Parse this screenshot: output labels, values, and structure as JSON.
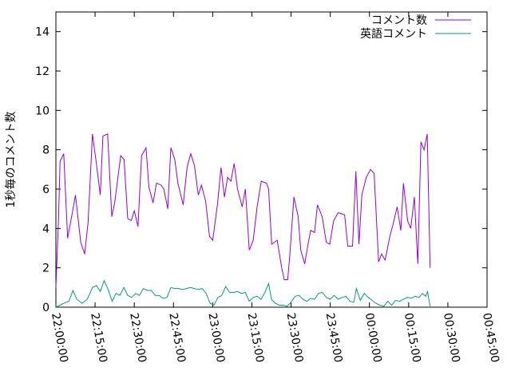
{
  "chart_data": {
    "type": "line",
    "xlabel": "",
    "ylabel": "1秒毎のコメント数",
    "ylim": [
      0,
      15
    ],
    "y_ticks": [
      "0",
      "2",
      "4",
      "6",
      "8",
      "10",
      "12",
      "14"
    ],
    "y_tick_values": [
      0,
      2,
      4,
      6,
      8,
      10,
      12,
      14
    ],
    "x_ticks": [
      "22:00:00",
      "22:15:00",
      "22:30:00",
      "22:45:00",
      "23:00:00",
      "23:15:00",
      "23:30:00",
      "23:45:00",
      "00:00:00",
      "00:15:00",
      "00:30:00",
      "00:45:00"
    ],
    "x_tick_minutes": [
      0,
      15,
      30,
      45,
      60,
      75,
      90,
      105,
      120,
      135,
      150,
      165
    ],
    "xlim_minutes": [
      0,
      165
    ],
    "legend_position": "top-right",
    "grid": false,
    "series": [
      {
        "name": "コメント数",
        "color": "#9400d3",
        "points": [
          [
            0,
            1.0
          ],
          [
            1,
            4.5
          ],
          [
            1.6,
            7.4
          ],
          [
            3,
            7.8
          ],
          [
            4.5,
            3.5
          ],
          [
            6.3,
            4.8
          ],
          [
            7.5,
            5.7
          ],
          [
            9.5,
            3.3
          ],
          [
            11,
            2.7
          ],
          [
            12.3,
            4.3
          ],
          [
            14,
            8.8
          ],
          [
            15.5,
            7.3
          ],
          [
            17,
            5.7
          ],
          [
            18,
            8.7
          ],
          [
            19.8,
            8.8
          ],
          [
            21.4,
            4.6
          ],
          [
            22.5,
            5.3
          ],
          [
            24.8,
            7.7
          ],
          [
            26.1,
            7.5
          ],
          [
            27.5,
            4.5
          ],
          [
            28.8,
            4.4
          ],
          [
            30,
            4.9
          ],
          [
            31.4,
            4.1
          ],
          [
            32.8,
            7.7
          ],
          [
            34.5,
            8.1
          ],
          [
            35.6,
            6.1
          ],
          [
            37.2,
            5.3
          ],
          [
            38.5,
            6.3
          ],
          [
            40.3,
            6.2
          ],
          [
            41.3,
            6.0
          ],
          [
            42.8,
            5.0
          ],
          [
            44,
            8.1
          ],
          [
            45.5,
            7.5
          ],
          [
            46.7,
            6.3
          ],
          [
            48.7,
            5.2
          ],
          [
            50.2,
            7.1
          ],
          [
            51.6,
            7.8
          ],
          [
            53,
            7.2
          ],
          [
            54.5,
            5.7
          ],
          [
            55.7,
            6.2
          ],
          [
            57.3,
            5.4
          ],
          [
            58.8,
            3.6
          ],
          [
            60,
            3.4
          ],
          [
            61.8,
            5.2
          ],
          [
            63.2,
            7.1
          ],
          [
            64.5,
            5.6
          ],
          [
            65.7,
            6.6
          ],
          [
            67,
            6.4
          ],
          [
            68.2,
            7.3
          ],
          [
            69.5,
            6.0
          ],
          [
            71.3,
            5.1
          ],
          [
            72.5,
            6.0
          ],
          [
            74,
            2.9
          ],
          [
            75.5,
            3.4
          ],
          [
            77,
            5.1
          ],
          [
            78.6,
            6.4
          ],
          [
            80.6,
            6.3
          ],
          [
            81.4,
            6.0
          ],
          [
            82.6,
            3.2
          ],
          [
            84.7,
            3.4
          ],
          [
            86.4,
            2.0
          ],
          [
            87.4,
            1.4
          ],
          [
            88.7,
            1.4
          ],
          [
            89.5,
            2.6
          ],
          [
            91.1,
            5.6
          ],
          [
            92.7,
            4.6
          ],
          [
            93.7,
            2.9
          ],
          [
            95.2,
            2.2
          ],
          [
            96.5,
            3.2
          ],
          [
            97.5,
            3.9
          ],
          [
            99,
            3.8
          ],
          [
            100.1,
            5.2
          ],
          [
            101.9,
            4.6
          ],
          [
            103.5,
            3.3
          ],
          [
            104.8,
            3.2
          ],
          [
            106.3,
            4.4
          ],
          [
            108,
            4.8
          ],
          [
            110.5,
            4.7
          ],
          [
            111.7,
            3.1
          ],
          [
            113.5,
            3.1
          ],
          [
            114.8,
            6.9
          ],
          [
            116,
            3.2
          ],
          [
            117.1,
            5.7
          ],
          [
            118.8,
            6.6
          ],
          [
            120.4,
            7.0
          ],
          [
            121.8,
            6.8
          ],
          [
            123.5,
            2.3
          ],
          [
            124.6,
            2.7
          ],
          [
            126,
            2.4
          ],
          [
            127.8,
            3.6
          ],
          [
            129,
            4.2
          ],
          [
            130.6,
            5.1
          ],
          [
            132,
            3.9
          ],
          [
            133,
            6.3
          ],
          [
            134.6,
            4.4
          ],
          [
            135.8,
            4.0
          ],
          [
            137.2,
            5.6
          ],
          [
            138.5,
            2.2
          ],
          [
            139.7,
            8.4
          ],
          [
            140.9,
            8.0
          ],
          [
            142.1,
            8.8
          ],
          [
            143.2,
            2.0
          ]
        ]
      },
      {
        "name": "英語コメント",
        "color": "#009e73",
        "points": [
          [
            0,
            0
          ],
          [
            1.5,
            0.1
          ],
          [
            3,
            0.2
          ],
          [
            5,
            0.3
          ],
          [
            6.5,
            0.85
          ],
          [
            8,
            0.4
          ],
          [
            10,
            0.2
          ],
          [
            12,
            0.4
          ],
          [
            14,
            1.0
          ],
          [
            15.5,
            1.1
          ],
          [
            17,
            0.8
          ],
          [
            18.5,
            1.35
          ],
          [
            20,
            0.9
          ],
          [
            21.5,
            0.3
          ],
          [
            23,
            0.7
          ],
          [
            24.5,
            0.6
          ],
          [
            26,
            1.0
          ],
          [
            27.5,
            0.6
          ],
          [
            29,
            0.5
          ],
          [
            30.5,
            0.7
          ],
          [
            32,
            0.6
          ],
          [
            33.5,
            0.95
          ],
          [
            35,
            0.85
          ],
          [
            36.5,
            0.85
          ],
          [
            38,
            0.6
          ],
          [
            39.5,
            0.6
          ],
          [
            41,
            0.45
          ],
          [
            42.5,
            0.5
          ],
          [
            44,
            1.0
          ],
          [
            45.5,
            0.95
          ],
          [
            47,
            0.95
          ],
          [
            48.5,
            0.9
          ],
          [
            50,
            0.95
          ],
          [
            51.5,
            1.0
          ],
          [
            53,
            0.95
          ],
          [
            54.5,
            0.9
          ],
          [
            56,
            0.95
          ],
          [
            57.5,
            0.7
          ],
          [
            59,
            0.2
          ],
          [
            60.5,
            0.1
          ],
          [
            62,
            0.5
          ],
          [
            63.5,
            0.6
          ],
          [
            65,
            1.05
          ],
          [
            66.5,
            0.75
          ],
          [
            68,
            0.75
          ],
          [
            69.5,
            0.8
          ],
          [
            71,
            0.7
          ],
          [
            72.5,
            0.75
          ],
          [
            74,
            0.3
          ],
          [
            75.5,
            0.5
          ],
          [
            77,
            0.55
          ],
          [
            78.5,
            0.4
          ],
          [
            80,
            0.75
          ],
          [
            81.4,
            1.2
          ],
          [
            82.5,
            0.4
          ],
          [
            84,
            0.2
          ],
          [
            85.5,
            0.1
          ],
          [
            87,
            0.1
          ],
          [
            88.5,
            0.05
          ],
          [
            90,
            0.25
          ],
          [
            91.5,
            0.55
          ],
          [
            93,
            0.6
          ],
          [
            94.5,
            0.4
          ],
          [
            96,
            0.3
          ],
          [
            97.5,
            0.45
          ],
          [
            99,
            0.4
          ],
          [
            100.5,
            0.7
          ],
          [
            102,
            0.75
          ],
          [
            103.5,
            0.5
          ],
          [
            105,
            0.4
          ],
          [
            106.5,
            0.6
          ],
          [
            108,
            0.4
          ],
          [
            109.5,
            0.5
          ],
          [
            111,
            0.55
          ],
          [
            112.5,
            0.3
          ],
          [
            114,
            0.25
          ],
          [
            115,
            0.95
          ],
          [
            116.5,
            0.35
          ],
          [
            118,
            0.7
          ],
          [
            119.5,
            0.5
          ],
          [
            121,
            0.35
          ],
          [
            122.5,
            0.2
          ],
          [
            124,
            0.1
          ],
          [
            125.5,
            0.05
          ],
          [
            127,
            0.3
          ],
          [
            128.5,
            0.1
          ],
          [
            130,
            0.35
          ],
          [
            131.5,
            0.3
          ],
          [
            133,
            0.4
          ],
          [
            134.5,
            0.5
          ],
          [
            136,
            0.45
          ],
          [
            137.5,
            0.55
          ],
          [
            139,
            0.5
          ],
          [
            140.3,
            0.7
          ],
          [
            141.5,
            0.55
          ],
          [
            142.2,
            0.8
          ],
          [
            143.2,
            0.05
          ]
        ]
      }
    ]
  }
}
